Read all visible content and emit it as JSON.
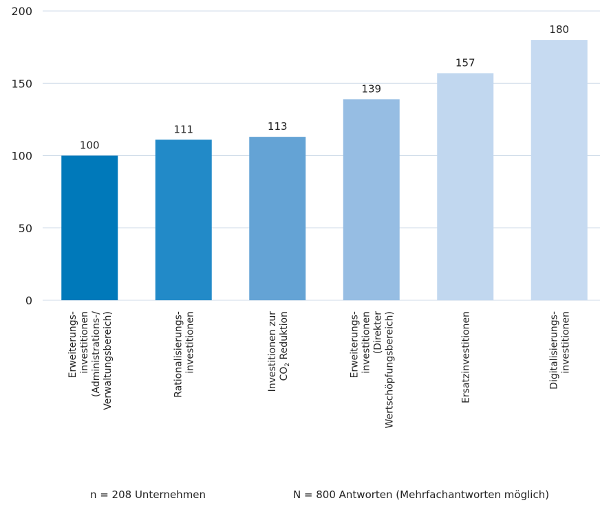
{
  "chart_data": {
    "type": "bar",
    "title": "",
    "xlabel": "",
    "ylabel": "",
    "ylim": [
      0,
      200
    ],
    "yticks": [
      0,
      50,
      100,
      150,
      200
    ],
    "grid": "horizontal",
    "categories": [
      [
        "Erweiterungs-",
        "investitionen",
        "(Administrations-/",
        "Verwaltungsbereich)"
      ],
      [
        "Rationalisierungs-",
        "investitionen"
      ],
      [
        "Investitionen zur",
        "CO2 Reduktion"
      ],
      [
        "Erweiterungs-",
        "investitionen",
        "(Direkter",
        "Wertschöpfungsbereich)"
      ],
      [
        "Ersatzinvestitionen"
      ],
      [
        "Digitalisierungs-",
        "investitionen"
      ]
    ],
    "values": [
      100,
      111,
      113,
      139,
      157,
      180
    ],
    "colors": [
      "#0079ba",
      "#228ac8",
      "#64a3d5",
      "#96bde3",
      "#c1d7ef",
      "#c6daf1"
    ]
  },
  "footnotes": {
    "left": "n = 208 Unternehmen",
    "right": "N = 800 Antworten (Mehrfachantworten möglich)"
  }
}
